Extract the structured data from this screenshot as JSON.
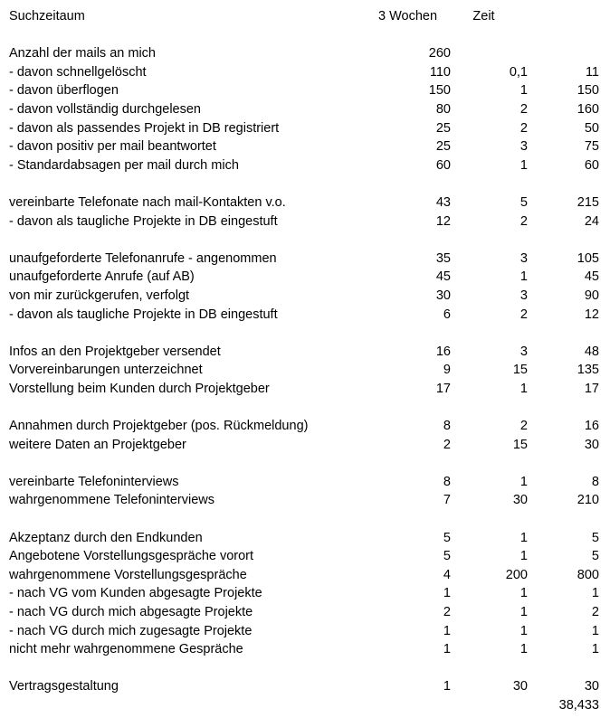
{
  "page": {
    "background_color": "#ffffff",
    "text_color": "#000000",
    "description_row_total_time": "38,433"
  },
  "header": {
    "label": "Suchzeitaum",
    "col1": "3 Wochen",
    "col2": "Zeit",
    "col3": ""
  },
  "table": {
    "rows": [
      {
        "label": "",
        "c1": "",
        "c2": "",
        "c3": ""
      },
      {
        "label": "Anzahl der mails an mich",
        "c1": "260",
        "c2": "",
        "c3": ""
      },
      {
        "label": "- davon schnellgelöscht",
        "c1": "110",
        "c2": "0,1",
        "c3": "11"
      },
      {
        "label": "- davon überflogen",
        "c1": "150",
        "c2": "1",
        "c3": "150"
      },
      {
        "label": "- davon vollständig durchgelesen",
        "c1": "80",
        "c2": "2",
        "c3": "160"
      },
      {
        "label": "- davon als passendes Projekt in DB registriert",
        "c1": "25",
        "c2": "2",
        "c3": "50"
      },
      {
        "label": "- davon positiv per mail beantwortet",
        "c1": "25",
        "c2": "3",
        "c3": "75"
      },
      {
        "label": "- Standardabsagen per mail durch mich",
        "c1": "60",
        "c2": "1",
        "c3": "60"
      },
      {
        "label": "",
        "c1": "",
        "c2": "",
        "c3": ""
      },
      {
        "label": "vereinbarte Telefonate nach mail-Kontakten v.o.",
        "c1": "43",
        "c2": "5",
        "c3": "215"
      },
      {
        "label": "- davon als taugliche Projekte in DB eingestuft",
        "c1": "12",
        "c2": "2",
        "c3": "24"
      },
      {
        "label": "",
        "c1": "",
        "c2": "",
        "c3": ""
      },
      {
        "label": "unaufgeforderte Telefonanrufe - angenommen",
        "c1": "35",
        "c2": "3",
        "c3": "105"
      },
      {
        "label": "unaufgeforderte Anrufe (auf AB)",
        "c1": "45",
        "c2": "1",
        "c3": "45"
      },
      {
        "label": "von mir zurückgerufen, verfolgt",
        "c1": "30",
        "c2": "3",
        "c3": "90"
      },
      {
        "label": "- davon als taugliche Projekte in DB eingestuft",
        "c1": "6",
        "c2": "2",
        "c3": "12"
      },
      {
        "label": "",
        "c1": "",
        "c2": "",
        "c3": ""
      },
      {
        "label": "Infos an den Projektgeber versendet",
        "c1": "16",
        "c2": "3",
        "c3": "48"
      },
      {
        "label": "Vorvereinbarungen unterzeichnet",
        "c1": "9",
        "c2": "15",
        "c3": "135"
      },
      {
        "label": "Vorstellung beim Kunden durch Projektgeber",
        "c1": "17",
        "c2": "1",
        "c3": "17"
      },
      {
        "label": "",
        "c1": "",
        "c2": "",
        "c3": ""
      },
      {
        "label": "Annahmen durch Projektgeber (pos. Rückmeldung)",
        "c1": "8",
        "c2": "2",
        "c3": "16"
      },
      {
        "label": "weitere Daten an Projektgeber",
        "c1": "2",
        "c2": "15",
        "c3": "30"
      },
      {
        "label": "",
        "c1": "",
        "c2": "",
        "c3": ""
      },
      {
        "label": "vereinbarte Telefoninterviews",
        "c1": "8",
        "c2": "1",
        "c3": "8"
      },
      {
        "label": "wahrgenommene Telefoninterviews",
        "c1": "7",
        "c2": "30",
        "c3": "210"
      },
      {
        "label": "",
        "c1": "",
        "c2": "",
        "c3": ""
      },
      {
        "label": "Akzeptanz durch den Endkunden",
        "c1": "5",
        "c2": "1",
        "c3": "5"
      },
      {
        "label": "Angebotene Vorstellungsgespräche vorort",
        "c1": "5",
        "c2": "1",
        "c3": "5"
      },
      {
        "label": "wahrgenommene Vorstellungsgespräche",
        "c1": "4",
        "c2": "200",
        "c3": "800"
      },
      {
        "label": "- nach VG vom Kunden abgesagte Projekte",
        "c1": "1",
        "c2": "1",
        "c3": "1"
      },
      {
        "label": "- nach VG durch mich abgesagte Projekte",
        "c1": "2",
        "c2": "1",
        "c3": "2"
      },
      {
        "label": "- nach VG durch mich zugesagte Projekte",
        "c1": "1",
        "c2": "1",
        "c3": "1"
      },
      {
        "label": "nicht mehr wahrgenommene Gespräche",
        "c1": "1",
        "c2": "1",
        "c3": "1"
      },
      {
        "label": "",
        "c1": "",
        "c2": "",
        "c3": ""
      },
      {
        "label": "Vertragsgestaltung",
        "c1": "1",
        "c2": "30",
        "c3": "30"
      },
      {
        "label": "",
        "c1": "",
        "c2": "",
        "c3": "38,433"
      }
    ]
  }
}
